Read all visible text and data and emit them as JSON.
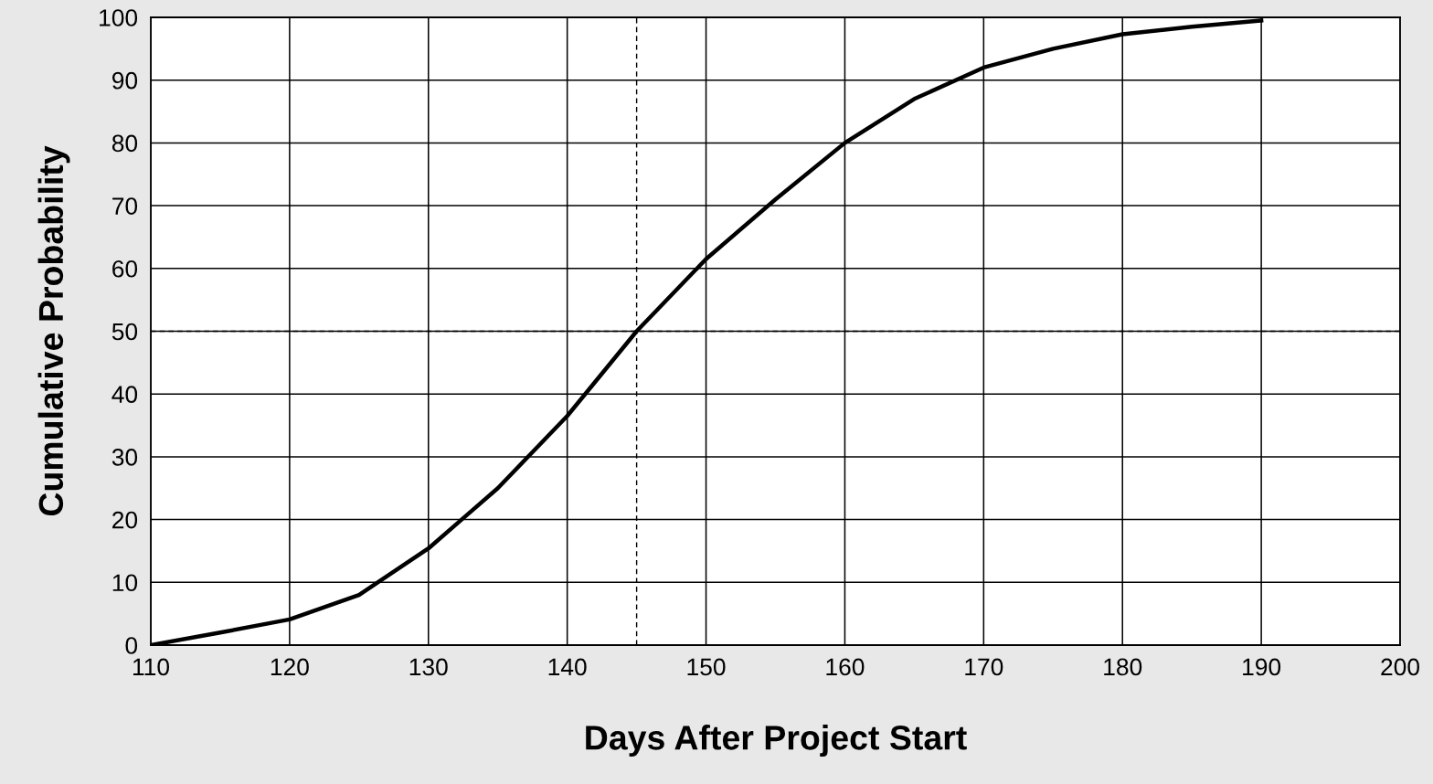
{
  "chart_data": {
    "type": "line",
    "xlabel": "Days After Project Start",
    "ylabel": "Cumulative Probability",
    "x": [
      110,
      115,
      120,
      125,
      130,
      135,
      140,
      145,
      150,
      155,
      160,
      165,
      170,
      175,
      180,
      185,
      190
    ],
    "series": [
      {
        "color": "#000000",
        "values": [
          0,
          2,
          4.1,
          8,
          15.4,
          25,
          36.5,
          50,
          61.5,
          71,
          80,
          87,
          92,
          95,
          97.3,
          98.5,
          99.5
        ]
      }
    ],
    "xlim": [
      110,
      200
    ],
    "xticks": [
      110,
      120,
      130,
      140,
      150,
      160,
      170,
      180,
      190,
      200
    ],
    "ylim": [
      0,
      100
    ],
    "yticks": [
      0,
      10,
      20,
      30,
      40,
      50,
      60,
      70,
      80,
      90,
      100
    ],
    "grid": true,
    "marker": "none",
    "line_style": "solid",
    "ref_lines": [
      {
        "axis": "x",
        "value": 145,
        "color": "#000000",
        "line_style": "dashed"
      },
      {
        "axis": "y",
        "value": 50,
        "color": "#000000",
        "line_style": "dashed"
      }
    ]
  }
}
